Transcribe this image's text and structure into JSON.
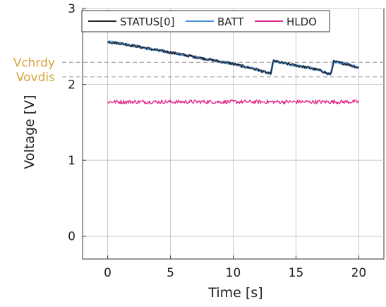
{
  "chart_data": {
    "type": "line",
    "xlabel": "Time [s]",
    "ylabel": "Voltage [V]",
    "xlim": [
      -2,
      22
    ],
    "ylim": [
      -0.3,
      3
    ],
    "xticks": [
      0,
      5,
      10,
      15,
      20
    ],
    "yticks": [
      0,
      1,
      2,
      3
    ],
    "grid": true,
    "legend_position": "top-left",
    "reference_lines": [
      {
        "label": "Vchrdy",
        "value": 2.29,
        "style": "dashed",
        "color": "#aaaaaa",
        "label_color": "#d4a33c"
      },
      {
        "label": "Vovdis",
        "value": 2.1,
        "style": "dashed",
        "color": "#aaaaaa",
        "label_color": "#d4a33c"
      }
    ],
    "series": [
      {
        "name": "STATUS[0]",
        "color": "#222222",
        "noise": 0.02,
        "x": [
          0,
          1,
          2,
          3,
          4,
          5,
          6,
          7,
          8,
          9,
          10,
          11,
          12,
          12.9,
          13.0,
          13.2,
          14,
          15,
          16,
          17,
          17.7,
          17.8,
          18,
          19,
          20
        ],
        "y": [
          2.56,
          2.54,
          2.51,
          2.48,
          2.45,
          2.42,
          2.39,
          2.36,
          2.33,
          2.3,
          2.27,
          2.23,
          2.19,
          2.14,
          2.15,
          2.31,
          2.28,
          2.25,
          2.22,
          2.18,
          2.13,
          2.15,
          2.3,
          2.27,
          2.22
        ]
      },
      {
        "name": "BATT",
        "color": "#4a90d9",
        "noise": 0.01,
        "x": [
          0,
          1,
          2,
          3,
          4,
          5,
          6,
          7,
          8,
          9,
          10,
          11,
          12,
          12.9,
          13.0,
          13.2,
          14,
          15,
          16,
          17,
          17.7,
          17.8,
          18,
          19,
          20
        ],
        "y": [
          2.56,
          2.54,
          2.51,
          2.48,
          2.45,
          2.42,
          2.39,
          2.36,
          2.33,
          2.3,
          2.27,
          2.23,
          2.19,
          2.14,
          2.15,
          2.31,
          2.28,
          2.25,
          2.22,
          2.18,
          2.13,
          2.15,
          2.3,
          2.27,
          2.22
        ]
      },
      {
        "name": "HLDO",
        "color": "#e0268a",
        "noise": 0.025,
        "x": [
          0,
          5,
          10,
          15,
          20
        ],
        "y": [
          1.77,
          1.77,
          1.77,
          1.77,
          1.77
        ]
      }
    ]
  }
}
